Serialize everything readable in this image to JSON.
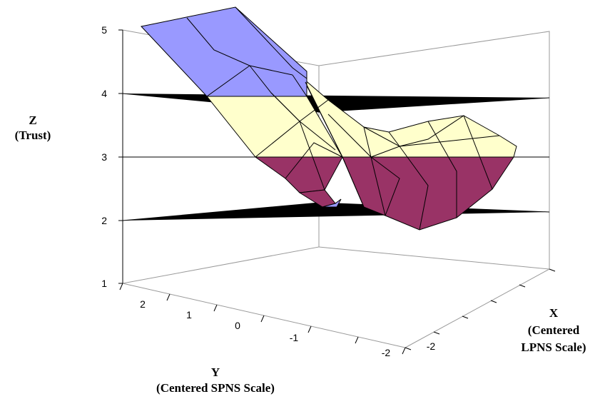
{
  "chart_data": {
    "type": "surface",
    "title": "",
    "zlabel": [
      "Z",
      "(Trust)"
    ],
    "ylabel": [
      "Y",
      "(Centered SPNS Scale)"
    ],
    "xlabel": [
      "X",
      "(Centered",
      "LPNS Scale)"
    ],
    "z_ticks": [
      "1",
      "2",
      "3",
      "4",
      "5"
    ],
    "y_ticks": [
      "2",
      "1",
      "0",
      "-1",
      "-2"
    ],
    "x_ticks": [
      "-2"
    ],
    "zlim": [
      1,
      5
    ],
    "color_bands": [
      {
        "range": [
          2,
          3
        ],
        "color": "#993366"
      },
      {
        "range": [
          3,
          4
        ],
        "color": "#ffffcc"
      },
      {
        "range": [
          4,
          5
        ],
        "color": "#9999ff"
      }
    ],
    "grid": true
  }
}
